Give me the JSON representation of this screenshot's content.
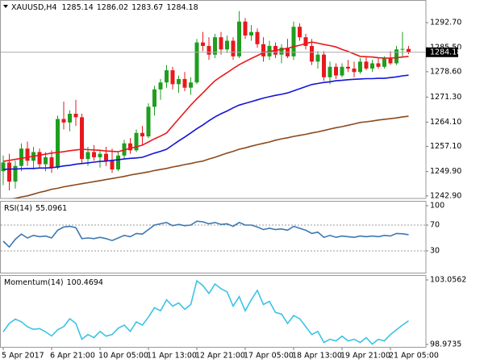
{
  "chart_data": [
    {
      "type": "candlestick",
      "title": "XAUUSD,H4",
      "categories": [
        "5 Apr 2017",
        null,
        null,
        null,
        null,
        null,
        null,
        null,
        "6 Apr 21:00",
        null,
        null,
        null,
        null,
        null,
        null,
        null,
        "10 Apr 05:00",
        null,
        null,
        null,
        null,
        null,
        null,
        null,
        "11 Apr 13:00",
        null,
        null,
        null,
        null,
        null,
        null,
        null,
        "12 Apr 21:00",
        null,
        null,
        null,
        null,
        null,
        null,
        null,
        "17 Apr 05:00",
        null,
        null,
        null,
        null,
        null,
        null,
        null,
        "18 Apr 13:00",
        null,
        null,
        null,
        null,
        null,
        null,
        null,
        "19 Apr 21:00",
        null,
        null,
        null,
        null,
        null,
        null,
        null,
        "21 Apr 05:00",
        null,
        null,
        null
      ],
      "ohlc": [
        [
          1250.0,
          1254.5,
          1246.0,
          1252.5
        ],
        [
          1252.5,
          1255.0,
          1244.5,
          1247.0
        ],
        [
          1247.0,
          1253.0,
          1245.0,
          1251.5
        ],
        [
          1251.5,
          1258.0,
          1250.0,
          1256.5
        ],
        [
          1256.5,
          1258.5,
          1251.5,
          1253.0
        ],
        [
          1253.0,
          1257.0,
          1250.5,
          1255.5
        ],
        [
          1255.5,
          1256.5,
          1251.0,
          1252.0
        ],
        [
          1252.0,
          1255.5,
          1250.0,
          1254.0
        ],
        [
          1254.0,
          1256.0,
          1249.5,
          1251.0
        ],
        [
          1251.0,
          1266.0,
          1250.5,
          1265.0
        ],
        [
          1265.0,
          1270.0,
          1262.0,
          1264.0
        ],
        [
          1264.0,
          1267.5,
          1261.5,
          1266.5
        ],
        [
          1266.5,
          1270.5,
          1263.0,
          1265.5
        ],
        [
          1265.5,
          1266.5,
          1252.0,
          1253.5
        ],
        [
          1253.5,
          1257.0,
          1251.5,
          1255.5
        ],
        [
          1255.5,
          1257.5,
          1253.0,
          1254.0
        ],
        [
          1254.0,
          1256.0,
          1251.0,
          1255.0
        ],
        [
          1255.0,
          1257.0,
          1251.5,
          1253.0
        ],
        [
          1253.0,
          1256.5,
          1249.5,
          1250.5
        ],
        [
          1250.5,
          1255.5,
          1250.0,
          1254.5
        ],
        [
          1254.5,
          1259.0,
          1253.5,
          1258.0
        ],
        [
          1258.0,
          1259.5,
          1255.0,
          1256.0
        ],
        [
          1256.0,
          1262.0,
          1255.5,
          1261.0
        ],
        [
          1261.0,
          1263.0,
          1257.5,
          1260.0
        ],
        [
          1260.0,
          1269.5,
          1259.5,
          1268.5
        ],
        [
          1268.5,
          1274.5,
          1266.0,
          1273.5
        ],
        [
          1273.5,
          1276.5,
          1270.5,
          1275.5
        ],
        [
          1275.5,
          1280.5,
          1274.0,
          1279.0
        ],
        [
          1279.0,
          1280.0,
          1273.5,
          1275.0
        ],
        [
          1275.0,
          1277.5,
          1272.5,
          1276.5
        ],
        [
          1276.5,
          1278.5,
          1273.0,
          1274.0
        ],
        [
          1274.0,
          1277.0,
          1272.0,
          1275.5
        ],
        [
          1275.5,
          1288.0,
          1275.0,
          1287.0
        ],
        [
          1287.0,
          1290.0,
          1284.5,
          1286.0
        ],
        [
          1286.0,
          1288.5,
          1282.0,
          1283.5
        ],
        [
          1283.5,
          1289.5,
          1282.5,
          1288.5
        ],
        [
          1288.5,
          1290.0,
          1283.5,
          1285.0
        ],
        [
          1285.0,
          1289.0,
          1284.0,
          1287.5
        ],
        [
          1287.5,
          1288.5,
          1282.0,
          1283.0
        ],
        [
          1283.0,
          1296.0,
          1282.5,
          1293.0
        ],
        [
          1293.0,
          1294.0,
          1288.0,
          1289.0
        ],
        [
          1289.0,
          1292.0,
          1287.5,
          1290.0
        ],
        [
          1290.0,
          1291.0,
          1285.5,
          1286.5
        ],
        [
          1286.5,
          1288.5,
          1281.5,
          1283.0
        ],
        [
          1283.0,
          1287.5,
          1282.0,
          1286.0
        ],
        [
          1286.0,
          1287.0,
          1282.5,
          1283.5
        ],
        [
          1283.5,
          1286.5,
          1281.0,
          1285.5
        ],
        [
          1285.5,
          1288.0,
          1282.5,
          1283.0
        ],
        [
          1283.0,
          1293.0,
          1282.0,
          1291.5
        ],
        [
          1291.5,
          1292.5,
          1287.5,
          1288.5
        ],
        [
          1288.5,
          1289.5,
          1285.0,
          1286.0
        ],
        [
          1286.0,
          1288.0,
          1280.5,
          1281.5
        ],
        [
          1281.5,
          1284.5,
          1279.5,
          1283.5
        ],
        [
          1283.5,
          1284.5,
          1276.0,
          1277.0
        ],
        [
          1277.0,
          1281.5,
          1275.0,
          1280.0
        ],
        [
          1280.0,
          1281.0,
          1276.5,
          1277.5
        ],
        [
          1277.5,
          1281.0,
          1277.0,
          1280.0
        ],
        [
          1280.0,
          1282.0,
          1278.5,
          1279.5
        ],
        [
          1279.5,
          1281.5,
          1277.0,
          1278.5
        ],
        [
          1278.5,
          1282.5,
          1278.0,
          1281.5
        ],
        [
          1281.5,
          1283.0,
          1279.0,
          1279.5
        ],
        [
          1279.5,
          1282.0,
          1278.5,
          1281.0
        ],
        [
          1281.0,
          1282.5,
          1279.5,
          1280.0
        ],
        [
          1280.0,
          1283.0,
          1279.5,
          1282.5
        ],
        [
          1282.5,
          1284.5,
          1280.5,
          1281.0
        ],
        [
          1281.0,
          1286.0,
          1280.5,
          1285.0
        ],
        [
          1285.0,
          1290.0,
          1283.0,
          1285.14
        ],
        [
          1285.14,
          1286.02,
          1283.67,
          1284.18
        ]
      ],
      "up_color": "#1f9e1f",
      "down_color": "#e8191c",
      "series": [
        {
          "color": "#e8191c",
          "values": [
            1252.8,
            1253.1,
            1253.4,
            1253.7,
            1254.0,
            1254.3,
            1254.6,
            1254.9,
            1255.2,
            1255.4,
            1255.6,
            1255.9,
            1256.1,
            1256.3,
            1256.2,
            1256.1,
            1256.0,
            1255.8,
            1255.7,
            1255.6,
            1256.1,
            1256.6,
            1257.0,
            1257.5,
            1258.4,
            1259.3,
            1260.1,
            1261.0,
            1263.0,
            1265.0,
            1267.0,
            1269.0,
            1270.8,
            1272.5,
            1274.3,
            1276.0,
            1277.2,
            1278.3,
            1279.5,
            1280.6,
            1281.5,
            1282.4,
            1283.2,
            1284.1,
            1284.4,
            1284.7,
            1285.0,
            1285.3,
            1285.8,
            1286.2,
            1286.7,
            1287.1,
            1286.8,
            1286.4,
            1286.1,
            1285.7,
            1285.0,
            1284.4,
            1283.7,
            1283.0,
            1282.9,
            1282.8,
            1282.6,
            1282.5,
            1282.5,
            1282.6,
            1282.8,
            1283.0
          ]
        },
        {
          "color": "#1414d8",
          "values": [
            1250.5,
            1250.6,
            1250.6,
            1250.7,
            1250.8,
            1250.8,
            1250.9,
            1250.9,
            1251.0,
            1251.2,
            1251.5,
            1251.7,
            1252.0,
            1252.2,
            1252.4,
            1252.6,
            1252.8,
            1252.9,
            1253.1,
            1253.3,
            1253.5,
            1253.7,
            1253.8,
            1254.0,
            1254.6,
            1255.2,
            1255.7,
            1256.3,
            1257.5,
            1258.7,
            1259.8,
            1261.0,
            1262.2,
            1263.3,
            1264.5,
            1265.6,
            1266.5,
            1267.3,
            1268.2,
            1269.0,
            1269.5,
            1270.0,
            1270.5,
            1271.0,
            1271.4,
            1271.8,
            1272.1,
            1272.5,
            1273.1,
            1273.7,
            1274.3,
            1274.9,
            1275.2,
            1275.5,
            1275.7,
            1276.0,
            1276.1,
            1276.3,
            1276.4,
            1276.5,
            1276.6,
            1276.6,
            1276.7,
            1276.7,
            1276.9,
            1277.1,
            1277.4,
            1277.6
          ]
        },
        {
          "color": "#8b4a1c",
          "values": [
            1241.5,
            1241.9,
            1242.2,
            1242.6,
            1242.9,
            1243.4,
            1243.9,
            1244.3,
            1244.8,
            1245.1,
            1245.5,
            1245.8,
            1246.1,
            1246.4,
            1246.7,
            1247.0,
            1247.3,
            1247.6,
            1247.9,
            1248.2,
            1248.5,
            1248.9,
            1249.2,
            1249.5,
            1249.8,
            1250.2,
            1250.5,
            1250.8,
            1251.2,
            1251.5,
            1251.9,
            1252.2,
            1252.6,
            1252.9,
            1253.5,
            1254.0,
            1254.6,
            1255.2,
            1255.7,
            1256.3,
            1256.7,
            1257.2,
            1257.6,
            1258.0,
            1258.4,
            1258.9,
            1259.3,
            1259.6,
            1260.0,
            1260.3,
            1260.6,
            1261.0,
            1261.3,
            1261.7,
            1262.1,
            1262.5,
            1262.8,
            1263.2,
            1263.6,
            1264.0,
            1264.2,
            1264.4,
            1264.7,
            1264.9,
            1265.1,
            1265.3,
            1265.6,
            1265.8
          ]
        }
      ],
      "ylim": [
        1242.4,
        1299.2
      ],
      "yticks": [
        {
          "value": 1292.7,
          "label": "1292.70"
        },
        {
          "value": 1285.5,
          "label": "1285.50"
        },
        {
          "value": 1278.6,
          "label": "1278.60"
        },
        {
          "value": 1271.3,
          "label": "1271.30"
        },
        {
          "value": 1264.1,
          "label": "1264.10"
        },
        {
          "value": 1257.1,
          "label": "1257.10"
        },
        {
          "value": 1249.9,
          "label": "1249.90"
        },
        {
          "value": 1242.9,
          "label": "1242.90"
        }
      ]
    },
    {
      "type": "line",
      "title": "RSI(14)",
      "color": "#3d78b0",
      "values": [
        45,
        36,
        48,
        56,
        50,
        54,
        52,
        53,
        50,
        62,
        67,
        68,
        66,
        49,
        50,
        49,
        51,
        49,
        46,
        50,
        54,
        52,
        57,
        56,
        63,
        70,
        72,
        74,
        69,
        71,
        69,
        70,
        76,
        75,
        72,
        74,
        71,
        72,
        68,
        74,
        70,
        70,
        67,
        63,
        65,
        63,
        64,
        62,
        68,
        65,
        62,
        57,
        59,
        51,
        54,
        51,
        53,
        52,
        51,
        53,
        52,
        53,
        52,
        54,
        53,
        57,
        56.5,
        55.0961
      ],
      "ylim": [
        0,
        100
      ],
      "yticks": [
        100,
        70,
        30
      ]
    },
    {
      "type": "line",
      "title": "Momentum(14)",
      "color": "#3cc3e6",
      "values": [
        99.77,
        100.3,
        100.57,
        100.41,
        100.09,
        99.93,
        99.98,
        99.77,
        99.51,
        99.9,
        100.1,
        100.6,
        100.3,
        99.3,
        99.6,
        99.4,
        99.8,
        99.5,
        99.6,
        100.0,
        100.2,
        99.8,
        100.4,
        100.2,
        100.7,
        101.3,
        101.1,
        101.8,
        101.4,
        101.6,
        101.2,
        101.5,
        103.0,
        102.7,
        102.2,
        102.8,
        102.5,
        102.3,
        101.4,
        102.0,
        101.1,
        101.8,
        102.4,
        101.5,
        101.7,
        101.0,
        100.9,
        100.3,
        100.8,
        100.6,
        100.1,
        99.6,
        99.8,
        99.1,
        99.3,
        99.2,
        99.5,
        99.2,
        99.3,
        99.1,
        99.4,
        99.0,
        99.3,
        99.2,
        99.6,
        99.9,
        100.2,
        100.4694
      ],
      "ylim": [
        98.9735,
        103.0562
      ],
      "yticks": [
        103.0562,
        98.9735
      ]
    }
  ]
}
